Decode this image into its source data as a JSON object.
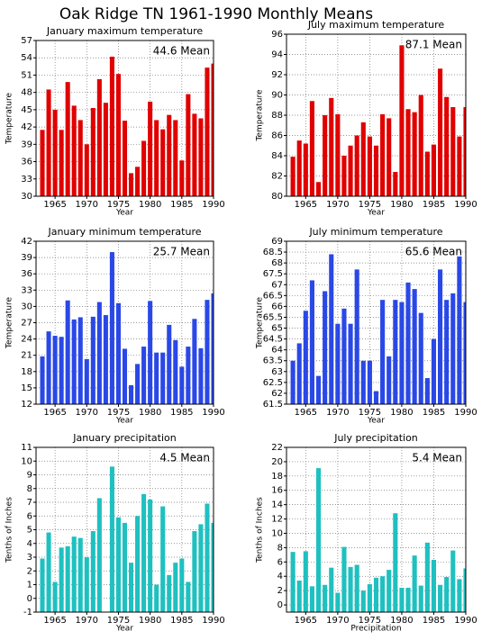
{
  "title": "Oak Ridge TN  1961-1990 Monthly Means",
  "chart_data": [
    {
      "type": "bar",
      "title": "January maximum temperature",
      "annotation": "44.6 Mean",
      "xlabel": "Year",
      "ylabel": "Temperature",
      "color": "#e00000",
      "grid": true,
      "x": [
        1963,
        1964,
        1965,
        1966,
        1967,
        1968,
        1969,
        1970,
        1971,
        1972,
        1973,
        1974,
        1975,
        1976,
        1977,
        1978,
        1979,
        1980,
        1981,
        1982,
        1983,
        1984,
        1985,
        1986,
        1987,
        1988,
        1989,
        1990
      ],
      "values": [
        41.5,
        48.5,
        45,
        41.5,
        49.8,
        45.7,
        43.2,
        39,
        45.3,
        50.3,
        46.2,
        54.2,
        51.2,
        43.1,
        34,
        35.1,
        39.6,
        46.4,
        43.2,
        41.6,
        44.1,
        43.2,
        36.2,
        47.7,
        44.3,
        43.5,
        52.3,
        53
      ],
      "xlim": [
        1962,
        1990
      ],
      "xticks": [
        1965,
        1970,
        1975,
        1980,
        1985,
        1990
      ],
      "ylim": [
        30,
        57
      ],
      "yticks": [
        30,
        33,
        36,
        39,
        42,
        45,
        48,
        51,
        54,
        57
      ]
    },
    {
      "type": "bar",
      "title": "July maximum temperature",
      "annotation": "87.1 Mean",
      "xlabel": "Year",
      "ylabel": "Temperature",
      "color": "#e00000",
      "grid": true,
      "x": [
        1963,
        1964,
        1965,
        1966,
        1967,
        1968,
        1969,
        1970,
        1971,
        1972,
        1973,
        1974,
        1975,
        1976,
        1977,
        1978,
        1979,
        1980,
        1981,
        1982,
        1983,
        1984,
        1985,
        1986,
        1987,
        1988,
        1989,
        1990
      ],
      "values": [
        83.9,
        85.5,
        85.2,
        89.4,
        81.4,
        88,
        89.7,
        88.1,
        84,
        85,
        86,
        87.3,
        85.9,
        85,
        88.1,
        87.7,
        82.4,
        94.9,
        88.6,
        88.3,
        90,
        84.4,
        85.1,
        92.6,
        89.8,
        88.8,
        85.9,
        88.8
      ],
      "xlim": [
        1962,
        1990
      ],
      "xticks": [
        1965,
        1970,
        1975,
        1980,
        1985,
        1990
      ],
      "ylim": [
        80,
        96
      ],
      "yticks": [
        80,
        82,
        84,
        86,
        88,
        90,
        92,
        94,
        96
      ]
    },
    {
      "type": "bar",
      "title": "January minimum temperature",
      "annotation": "25.7 Mean",
      "xlabel": "Year",
      "ylabel": "Temperature",
      "color": "#2a48e6",
      "grid": true,
      "x": [
        1963,
        1964,
        1965,
        1966,
        1967,
        1968,
        1969,
        1970,
        1971,
        1972,
        1973,
        1974,
        1975,
        1976,
        1977,
        1978,
        1979,
        1980,
        1981,
        1982,
        1983,
        1984,
        1985,
        1986,
        1987,
        1988,
        1989,
        1990
      ],
      "values": [
        20.8,
        25.4,
        24.6,
        24.4,
        31.1,
        27.6,
        28,
        20.3,
        28.1,
        30.8,
        28.4,
        40,
        30.6,
        22.2,
        15.5,
        19.4,
        22.6,
        31,
        21.5,
        21.5,
        26.6,
        23.8,
        18.9,
        22.6,
        27.7,
        22.3,
        31.2,
        32.4
      ],
      "xlim": [
        1962,
        1990
      ],
      "xticks": [
        1965,
        1970,
        1975,
        1980,
        1985,
        1990
      ],
      "ylim": [
        12,
        42
      ],
      "yticks": [
        12,
        15,
        18,
        21,
        24,
        27,
        30,
        33,
        36,
        39,
        42
      ]
    },
    {
      "type": "bar",
      "title": "July minimum temperature",
      "annotation": "65.6 Mean",
      "xlabel": "Year",
      "ylabel": "Temperature",
      "color": "#2a48e6",
      "grid": true,
      "x": [
        1963,
        1964,
        1965,
        1966,
        1967,
        1968,
        1969,
        1970,
        1971,
        1972,
        1973,
        1974,
        1975,
        1976,
        1977,
        1978,
        1979,
        1980,
        1981,
        1982,
        1983,
        1984,
        1985,
        1986,
        1987,
        1988,
        1989,
        1990
      ],
      "values": [
        63.5,
        64.3,
        65.8,
        67.2,
        62.8,
        66.7,
        68.4,
        65.2,
        65.9,
        65.2,
        67.7,
        63.5,
        63.5,
        62.1,
        66.3,
        63.7,
        66.3,
        66.2,
        67.1,
        66.8,
        65.7,
        62.7,
        64.5,
        67.7,
        66.3,
        66.6,
        68.3,
        66.2
      ],
      "xlim": [
        1962,
        1990
      ],
      "xticks": [
        1965,
        1970,
        1975,
        1980,
        1985,
        1990
      ],
      "ylim": [
        61.5,
        69
      ],
      "yticks": [
        61.5,
        62,
        62.5,
        63,
        63.5,
        64,
        64.5,
        65,
        65.5,
        66,
        66.5,
        67,
        67.5,
        68,
        68.5,
        69
      ]
    },
    {
      "type": "bar",
      "title": "January precipitation",
      "annotation": "4.5 Mean",
      "xlabel": "Year",
      "ylabel": "Tenths of Inches",
      "color": "#1fc0c0",
      "grid": true,
      "x": [
        1963,
        1964,
        1965,
        1966,
        1967,
        1968,
        1969,
        1970,
        1971,
        1972,
        1973,
        1974,
        1975,
        1976,
        1977,
        1978,
        1979,
        1980,
        1981,
        1982,
        1983,
        1984,
        1985,
        1986,
        1987,
        1988,
        1989,
        1990
      ],
      "values": [
        2.9,
        4.8,
        1.2,
        3.7,
        3.8,
        4.5,
        4.4,
        3,
        4.9,
        7.3,
        null,
        9.6,
        5.9,
        5.5,
        2.6,
        6,
        7.6,
        7.2,
        1,
        6.7,
        1.7,
        2.6,
        2.9,
        1.2,
        4.9,
        5.4,
        6.9,
        5.5
      ],
      "xlim": [
        1962,
        1990
      ],
      "xticks": [
        1965,
        1970,
        1975,
        1980,
        1985,
        1990
      ],
      "ylim": [
        -1,
        11
      ],
      "yticks": [
        -1,
        0,
        1,
        2,
        3,
        4,
        5,
        6,
        7,
        8,
        9,
        10,
        11
      ]
    },
    {
      "type": "bar",
      "title": "July precipitation",
      "annotation": "5.4 Mean",
      "xlabel": "Precipitation",
      "ylabel": "Tenths of Inches",
      "color": "#1fc0c0",
      "grid": true,
      "x": [
        1963,
        1964,
        1965,
        1966,
        1967,
        1968,
        1969,
        1970,
        1971,
        1972,
        1973,
        1974,
        1975,
        1976,
        1977,
        1978,
        1979,
        1980,
        1981,
        1982,
        1983,
        1984,
        1985,
        1986,
        1987,
        1988,
        1989,
        1990
      ],
      "values": [
        7.4,
        3.4,
        7.5,
        2.6,
        19.1,
        2.8,
        5.2,
        1.7,
        8.1,
        5.3,
        5.6,
        2,
        2.9,
        3.8,
        4,
        4.9,
        12.8,
        2.4,
        2.4,
        6.9,
        2.7,
        8.7,
        6.3,
        2.8,
        3.9,
        7.6,
        3.6,
        5.1
      ],
      "xlim": [
        1962,
        1990
      ],
      "xticks": [
        1965,
        1970,
        1975,
        1980,
        1985,
        1990
      ],
      "ylim": [
        -1,
        22
      ],
      "yticks": [
        0,
        2,
        4,
        6,
        8,
        10,
        12,
        14,
        16,
        18,
        20,
        22
      ]
    }
  ]
}
